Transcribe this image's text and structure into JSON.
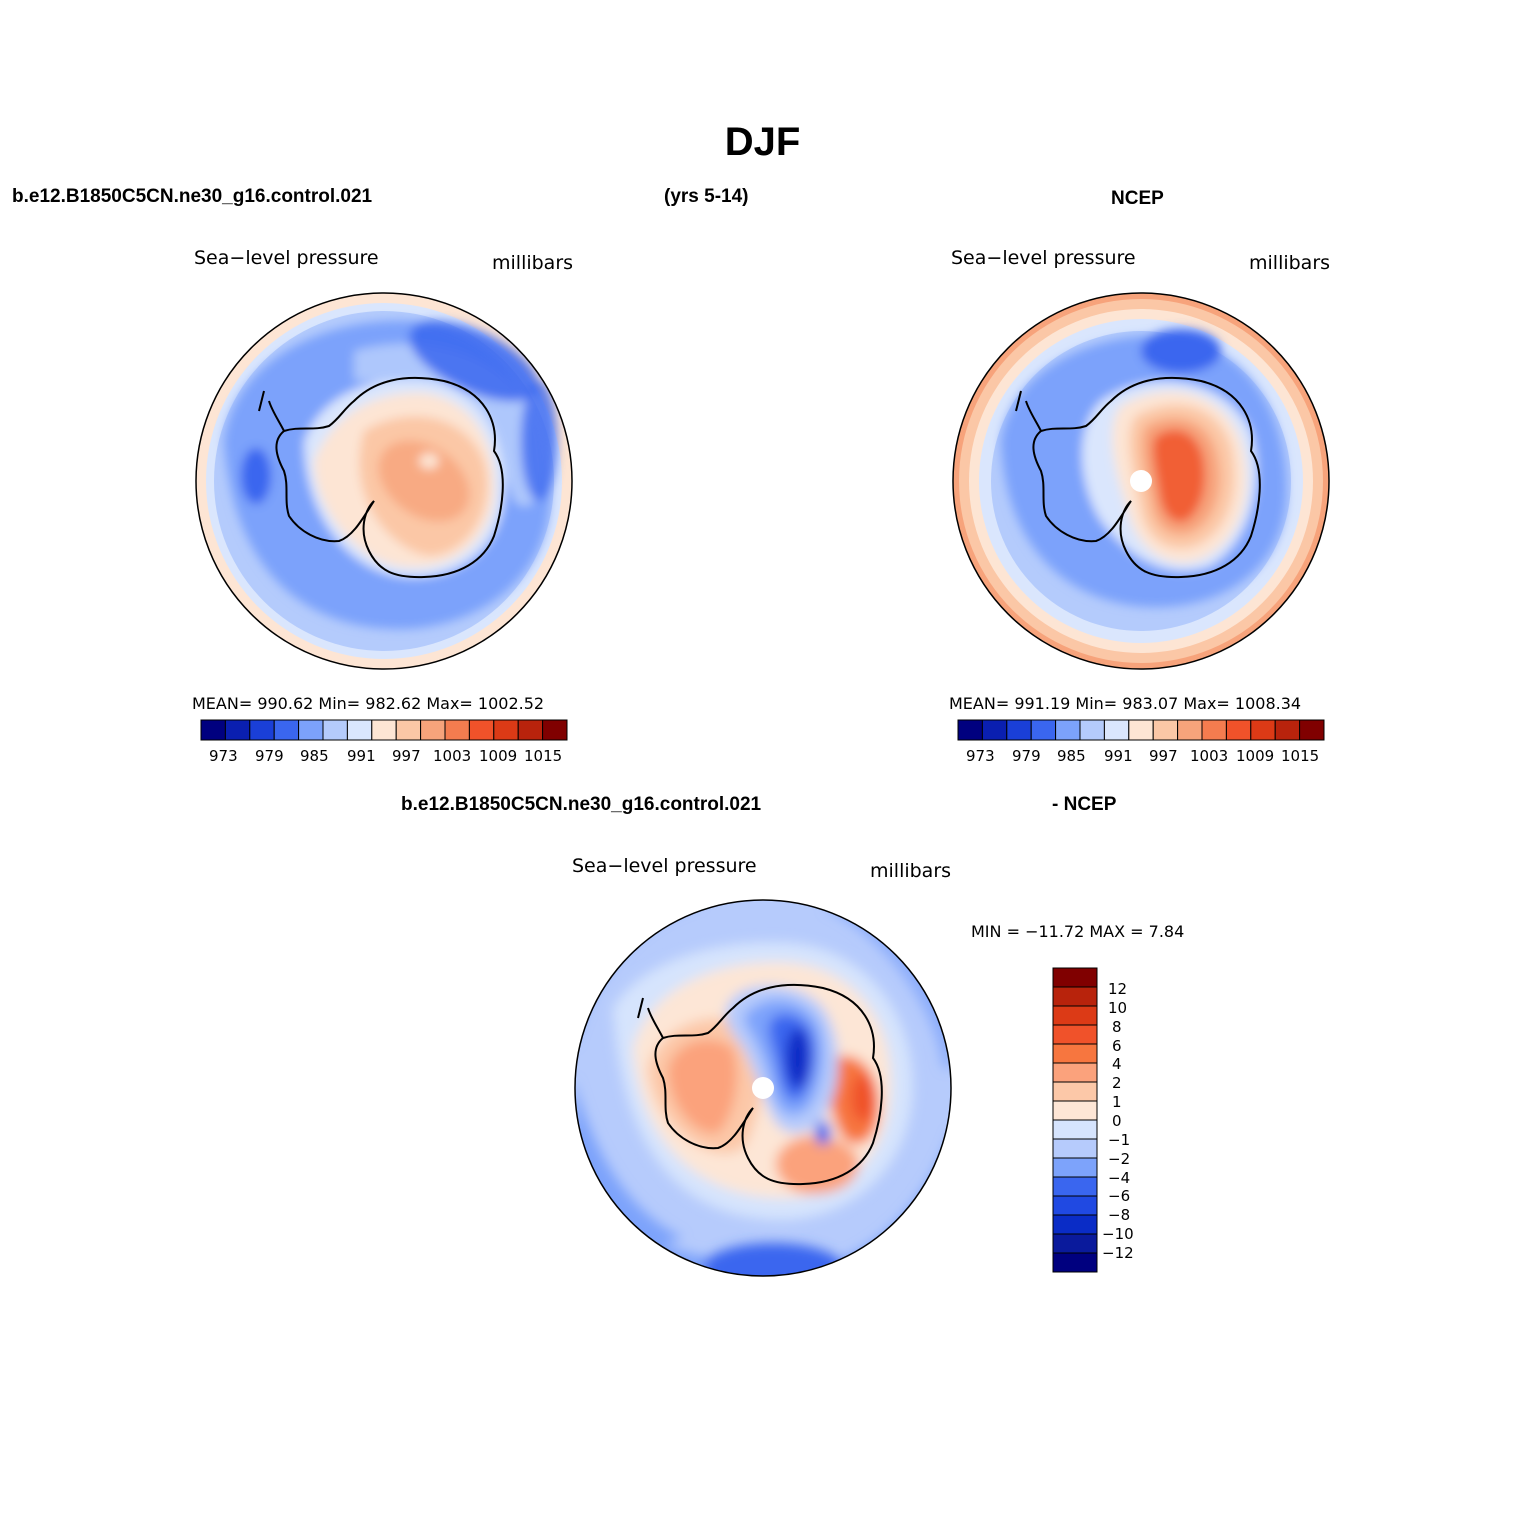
{
  "figure": {
    "title": "DJF",
    "case_name": "b.e12.B1850C5CN.ne30_g16.control.021",
    "years": "(yrs 5-14)",
    "obs_name": "NCEP",
    "diff_case": "b.e12.B1850C5CN.ne30_g16.control.021",
    "diff_obs": "- NCEP"
  },
  "panels": {
    "model": {
      "variable": "Sea−level pressure",
      "units": "millibars",
      "stats": "MEAN= 990.62   Min= 982.62   Max= 1002.52"
    },
    "obs": {
      "variable": "Sea−level pressure",
      "units": "millibars",
      "stats": "MEAN= 991.19   Min= 983.07   Max= 1008.34"
    },
    "diff": {
      "variable": "Sea−level pressure",
      "units": "millibars",
      "stats": "MIN = −11.72 MAX =    7.84"
    }
  },
  "chart_data": [
    {
      "type": "heatmap",
      "name": "model-slp",
      "region": "Southern Hemisphere polar stereographic",
      "units": "millibars",
      "mean": 990.62,
      "min": 982.62,
      "max": 1002.52,
      "levels": [
        973,
        976,
        979,
        982,
        985,
        988,
        991,
        994,
        997,
        1000,
        1003,
        1006,
        1009,
        1012,
        1015
      ],
      "colorbar_tick_labels": [
        "973",
        "979",
        "985",
        "991",
        "997",
        "1003",
        "1009",
        "1015"
      ]
    },
    {
      "type": "heatmap",
      "name": "ncep-slp",
      "region": "Southern Hemisphere polar stereographic",
      "units": "millibars",
      "mean": 991.19,
      "min": 983.07,
      "max": 1008.34,
      "levels": [
        973,
        976,
        979,
        982,
        985,
        988,
        991,
        994,
        997,
        1000,
        1003,
        1006,
        1009,
        1012,
        1015
      ],
      "colorbar_tick_labels": [
        "973",
        "979",
        "985",
        "991",
        "997",
        "1003",
        "1009",
        "1015"
      ]
    },
    {
      "type": "heatmap",
      "name": "model-minus-ncep",
      "region": "Southern Hemisphere polar stereographic",
      "units": "millibars",
      "min": -11.72,
      "max": 7.84,
      "colorbar_tick_labels": [
        "12",
        "10",
        "8",
        "6",
        "4",
        "2",
        "1",
        "0",
        "−1",
        "−2",
        "−4",
        "−6",
        "−8",
        "−10",
        "−12"
      ]
    }
  ],
  "colors": {
    "abs_scale": [
      "#00007f",
      "#0a1fb0",
      "#1a3fd8",
      "#3a66ef",
      "#7ca2fb",
      "#b4cbfc",
      "#dae6fd",
      "#fde5d4",
      "#fbc7a6",
      "#f7a37b",
      "#f47c4f",
      "#f0522a",
      "#dc3a16",
      "#b8230c",
      "#800000"
    ],
    "diff_scale": [
      "#800000",
      "#b8230c",
      "#dc3a16",
      "#f0522a",
      "#f7763f",
      "#fba27c",
      "#fcc8a8",
      "#fde6d6",
      "#d6e4fd",
      "#b6cbfc",
      "#7da3fb",
      "#3a66ef",
      "#2049e2",
      "#0a2cc6",
      "#0a1a9c",
      "#00007f"
    ]
  }
}
